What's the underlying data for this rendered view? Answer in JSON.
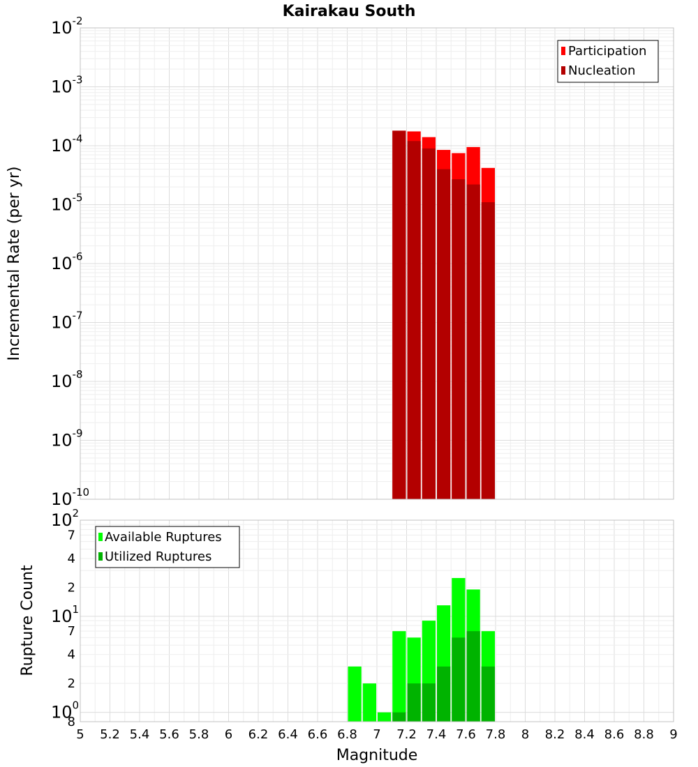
{
  "chart_data": [
    {
      "type": "bar",
      "title": "Kairakau South",
      "xlabel": "Magnitude",
      "ylabel": "Incremental Rate (per yr)",
      "yscale": "log",
      "ylim": [
        1e-10,
        0.01
      ],
      "xlim": [
        5,
        9
      ],
      "bin_width": 0.1,
      "y_tick_labels": [
        {
          "base": "10",
          "exp": "-10"
        },
        {
          "base": "10",
          "exp": "-9"
        },
        {
          "base": "10",
          "exp": "-8"
        },
        {
          "base": "10",
          "exp": "-7"
        },
        {
          "base": "10",
          "exp": "-6"
        },
        {
          "base": "10",
          "exp": "-5"
        },
        {
          "base": "10",
          "exp": "-4"
        },
        {
          "base": "10",
          "exp": "-3"
        },
        {
          "base": "10",
          "exp": "-2"
        }
      ],
      "legend_position": "top-right",
      "series": [
        {
          "name": "Participation",
          "color": "#ff0000",
          "x": [
            7.15,
            7.25,
            7.35,
            7.45,
            7.55,
            7.65,
            7.75
          ],
          "values": [
            0.00018,
            0.000175,
            0.00014,
            8.5e-05,
            7.5e-05,
            9.5e-05,
            4.2e-05
          ]
        },
        {
          "name": "Nucleation",
          "color": "#b30000",
          "x": [
            7.15,
            7.25,
            7.35,
            7.45,
            7.55,
            7.65,
            7.75
          ],
          "values": [
            0.00018,
            0.00012,
            9e-05,
            4e-05,
            2.7e-05,
            2.2e-05,
            1.1e-05
          ]
        }
      ]
    },
    {
      "type": "bar",
      "xlabel": "Magnitude",
      "ylabel": "Rupture Count",
      "yscale": "log",
      "ylim": [
        0.8,
        100
      ],
      "xlim": [
        5,
        9
      ],
      "bin_width": 0.1,
      "x_ticks": [
        "5",
        "5.2",
        "5.4",
        "5.6",
        "5.8",
        "6",
        "6.2",
        "6.4",
        "6.6",
        "6.8",
        "7",
        "7.2",
        "7.4",
        "7.6",
        "7.8",
        "8",
        "8.2",
        "8.4",
        "8.6",
        "8.8",
        "9"
      ],
      "y_minor_ticks": [
        {
          "value": 2,
          "label": "2"
        },
        {
          "value": 4,
          "label": "4"
        },
        {
          "value": 7,
          "label": "7"
        },
        {
          "value": 20,
          "label": "2"
        },
        {
          "value": 40,
          "label": "4"
        },
        {
          "value": 70,
          "label": "7"
        }
      ],
      "y_major_ticks": [
        {
          "value": 1,
          "base": "10",
          "exp": "0"
        },
        {
          "value": 10,
          "base": "10",
          "exp": "1"
        },
        {
          "value": 100,
          "base": "10",
          "exp": "2"
        }
      ],
      "bottom_label": "8",
      "legend_position": "top-left",
      "series": [
        {
          "name": "Available Ruptures",
          "color": "#00ff00",
          "x": [
            6.85,
            6.95,
            7.05,
            7.15,
            7.25,
            7.35,
            7.45,
            7.55,
            7.65,
            7.75
          ],
          "values": [
            3,
            2,
            1,
            7,
            6,
            9,
            13,
            25,
            19,
            7
          ]
        },
        {
          "name": "Utilized Ruptures",
          "color": "#00b300",
          "x": [
            7.15,
            7.25,
            7.35,
            7.45,
            7.55,
            7.65,
            7.75
          ],
          "values": [
            1,
            2,
            2,
            3,
            6,
            7,
            3
          ]
        }
      ]
    }
  ]
}
